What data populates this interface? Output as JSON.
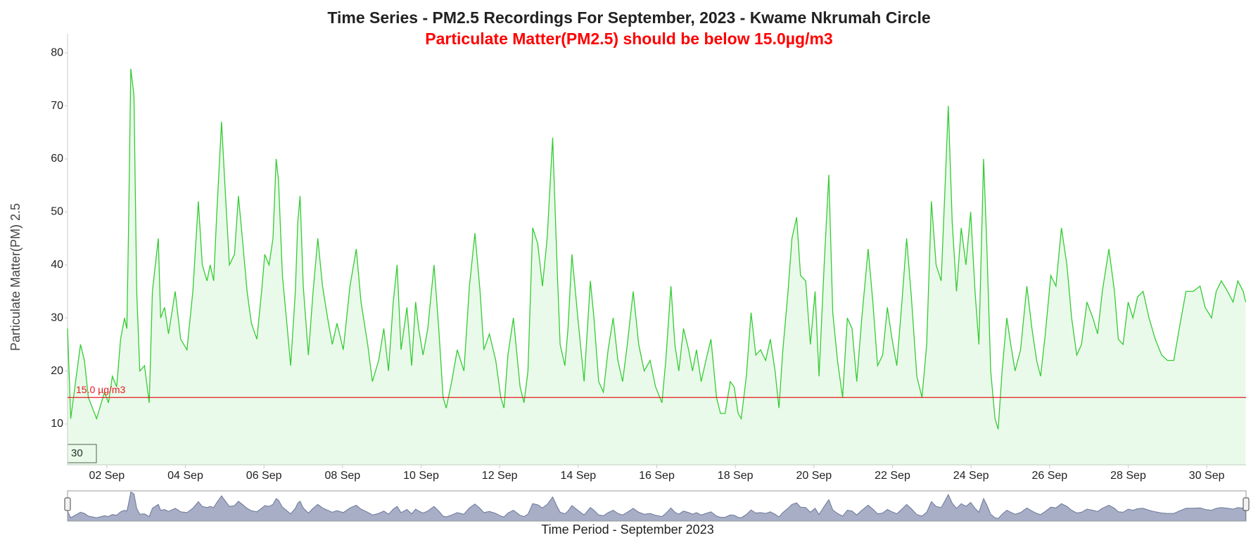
{
  "chart_data": {
    "type": "area",
    "title": "Time Series - PM2.5 Recordings For September, 2023 - Kwame Nkrumah Circle",
    "subtitle": "Particulate Matter(PM2.5) should be below 15.0µg/m3",
    "subtitle_color": "#ff0000",
    "y_label": "Particulate Matter(PM) 2.5",
    "x_label": "Time Period - September 2023",
    "input_box": "30",
    "color": "#33cc33",
    "threshold": {
      "value": 15,
      "label": "15.0 µg/m3",
      "color": "#e31a1c"
    },
    "xlim": [
      1,
      31
    ],
    "xticks": [
      {
        "value": 2,
        "label": "02 Sep"
      },
      {
        "value": 4,
        "label": "04 Sep"
      },
      {
        "value": 6,
        "label": "06 Sep"
      },
      {
        "value": 8,
        "label": "08 Sep"
      },
      {
        "value": 10,
        "label": "10 Sep"
      },
      {
        "value": 12,
        "label": "12 Sep"
      },
      {
        "value": 14,
        "label": "14 Sep"
      },
      {
        "value": 16,
        "label": "16 Sep"
      },
      {
        "value": 18,
        "label": "18 Sep"
      },
      {
        "value": 20,
        "label": "20 Sep"
      },
      {
        "value": 22,
        "label": "22 Sep"
      },
      {
        "value": 24,
        "label": "24 Sep"
      },
      {
        "value": 26,
        "label": "26 Sep"
      },
      {
        "value": 28,
        "label": "28 Sep"
      },
      {
        "value": 30,
        "label": "30 Sep"
      }
    ],
    "ylim": [
      2.3,
      83.6
    ],
    "yticks": [
      10,
      20,
      30,
      40,
      50,
      60,
      70,
      80
    ],
    "x": [
      1.0,
      1.08,
      1.33,
      1.43,
      1.53,
      1.74,
      1.94,
      2.04,
      2.14,
      2.25,
      2.35,
      2.45,
      2.51,
      2.55,
      2.61,
      2.69,
      2.76,
      2.84,
      2.96,
      3.08,
      3.16,
      3.31,
      3.37,
      3.47,
      3.57,
      3.74,
      3.88,
      4.04,
      4.19,
      4.33,
      4.43,
      4.55,
      4.63,
      4.72,
      4.8,
      4.92,
      5.0,
      5.12,
      5.25,
      5.35,
      5.45,
      5.57,
      5.68,
      5.82,
      5.94,
      6.02,
      6.13,
      6.23,
      6.31,
      6.37,
      6.47,
      6.57,
      6.68,
      6.8,
      6.86,
      6.92,
      7.0,
      7.13,
      7.25,
      7.37,
      7.49,
      7.62,
      7.74,
      7.86,
      8.02,
      8.19,
      8.35,
      8.47,
      8.64,
      8.76,
      8.92,
      9.05,
      9.17,
      9.29,
      9.39,
      9.49,
      9.64,
      9.76,
      9.86,
      9.94,
      10.05,
      10.17,
      10.33,
      10.45,
      10.56,
      10.64,
      10.78,
      10.92,
      11.09,
      11.23,
      11.37,
      11.5,
      11.6,
      11.74,
      11.9,
      12.03,
      12.11,
      12.21,
      12.35,
      12.52,
      12.62,
      12.72,
      12.84,
      12.97,
      13.09,
      13.21,
      13.35,
      13.46,
      13.54,
      13.66,
      13.74,
      13.84,
      13.99,
      14.15,
      14.31,
      14.4,
      14.52,
      14.64,
      14.76,
      14.89,
      15.01,
      15.13,
      15.25,
      15.4,
      15.54,
      15.68,
      15.83,
      15.97,
      16.13,
      16.23,
      16.36,
      16.46,
      16.56,
      16.68,
      16.81,
      16.91,
      17.01,
      17.13,
      17.25,
      17.38,
      17.52,
      17.62,
      17.74,
      17.87,
      17.97,
      18.07,
      18.15,
      18.28,
      18.4,
      18.52,
      18.64,
      18.77,
      18.89,
      19.01,
      19.11,
      19.21,
      19.34,
      19.44,
      19.56,
      19.66,
      19.79,
      19.91,
      20.03,
      20.13,
      20.26,
      20.38,
      20.48,
      20.6,
      20.73,
      20.85,
      20.97,
      21.09,
      21.22,
      21.38,
      21.5,
      21.62,
      21.75,
      21.87,
      21.99,
      22.11,
      22.24,
      22.36,
      22.48,
      22.62,
      22.75,
      22.87,
      22.99,
      23.11,
      23.24,
      23.34,
      23.42,
      23.52,
      23.63,
      23.75,
      23.87,
      23.99,
      24.1,
      24.2,
      24.32,
      24.4,
      24.5,
      24.61,
      24.69,
      24.79,
      24.91,
      25.01,
      25.12,
      25.26,
      25.42,
      25.55,
      25.67,
      25.77,
      25.89,
      26.03,
      26.16,
      26.3,
      26.44,
      26.56,
      26.69,
      26.81,
      26.95,
      27.1,
      27.22,
      27.34,
      27.51,
      27.65,
      27.75,
      27.87,
      28.0,
      28.12,
      28.24,
      28.38,
      28.53,
      28.69,
      28.85,
      29.0,
      29.16,
      29.3,
      29.47,
      29.65,
      29.83,
      29.96,
      30.12,
      30.24,
      30.37,
      30.53,
      30.67,
      30.79,
      30.93,
      30.99
    ],
    "values": [
      28,
      11,
      25,
      22,
      15,
      11,
      16,
      14,
      19,
      17,
      26,
      30,
      28,
      45,
      77,
      72,
      35,
      20,
      21,
      14,
      35,
      45,
      30,
      32,
      27,
      35,
      26,
      24,
      35,
      52,
      40,
      37,
      40,
      37,
      50,
      67,
      56,
      40,
      42,
      53,
      45,
      35,
      29,
      26,
      35,
      42,
      40,
      45,
      60,
      56,
      38,
      30,
      21,
      35,
      48,
      53,
      36,
      23,
      35,
      45,
      36,
      30,
      25,
      29,
      24,
      36,
      43,
      33,
      25,
      18,
      22,
      28,
      20,
      33,
      40,
      24,
      32,
      21,
      33,
      28,
      23,
      28,
      40,
      28,
      15,
      13,
      18,
      24,
      20,
      36,
      46,
      35,
      24,
      27,
      22,
      15,
      13,
      23,
      30,
      17,
      14,
      20,
      47,
      44,
      36,
      45,
      64,
      40,
      25,
      21,
      28,
      42,
      30,
      18,
      37,
      30,
      18,
      16,
      24,
      30,
      22,
      18,
      25,
      35,
      25,
      20,
      22,
      17,
      14,
      22,
      36,
      25,
      20,
      28,
      24,
      20,
      24,
      18,
      22,
      26,
      15,
      12,
      12,
      18,
      17,
      12,
      11,
      19,
      31,
      23,
      24,
      22,
      26,
      20,
      13,
      24,
      35,
      45,
      49,
      38,
      37,
      25,
      35,
      19,
      40,
      57,
      31,
      22,
      15,
      30,
      28,
      18,
      30,
      43,
      33,
      21,
      23,
      32,
      26,
      21,
      33,
      45,
      34,
      19,
      15,
      25,
      52,
      40,
      37,
      55,
      70,
      48,
      35,
      47,
      40,
      50,
      35,
      25,
      60,
      44,
      20,
      11,
      9,
      20,
      30,
      25,
      20,
      24,
      36,
      28,
      22,
      19,
      27,
      38,
      36,
      47,
      40,
      30,
      23,
      25,
      33,
      30,
      27,
      35,
      43,
      35,
      26,
      25,
      33,
      30,
      34,
      35,
      30,
      26,
      23,
      22,
      22,
      28,
      35,
      35,
      36,
      32,
      30,
      35,
      37,
      35,
      33,
      37,
      35,
      33
    ]
  }
}
